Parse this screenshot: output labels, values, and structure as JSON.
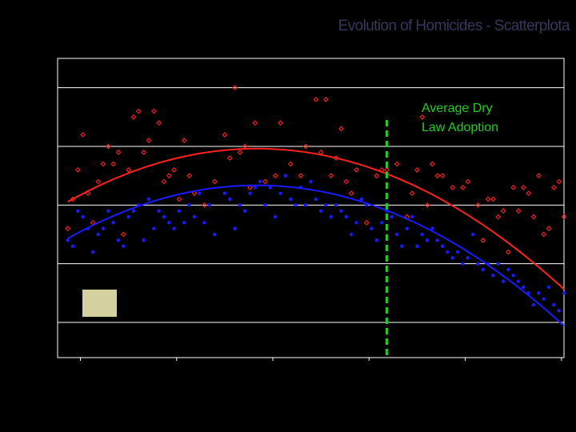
{
  "chart_data": {
    "type": "scatter",
    "title": "Evolution of Homicides - Scatterplota",
    "xlim": [
      0,
      100
    ],
    "ylim": [
      -0.6,
      4.5
    ],
    "grid_y": [
      0,
      1,
      2,
      3,
      4
    ],
    "grid": true,
    "x_ticks": [
      4.5,
      23.5,
      42.5,
      61.5,
      80.5,
      99.5
    ],
    "annotation": {
      "text_line1": "Average Dry",
      "text_line2": "Law Adoption",
      "x": 65
    },
    "legend_swatch_color": "#d4d0a0",
    "colors": {
      "background": "#000000",
      "title": "#35385a",
      "grid": "#ffffff",
      "series_a": "#ff2020",
      "series_b": "#1a1aff",
      "annotation": "#22cc22"
    },
    "series": [
      {
        "key": "red",
        "fit": [
          -0.000651,
          0.0512,
          1.955
        ],
        "points": [
          [
            2,
            1.6
          ],
          [
            3,
            2.1
          ],
          [
            4,
            2.6
          ],
          [
            5,
            3.2
          ],
          [
            6,
            2.2
          ],
          [
            7,
            1.7
          ],
          [
            8,
            2.4
          ],
          [
            9,
            2.7
          ],
          [
            10,
            3
          ],
          [
            11,
            2.7
          ],
          [
            12,
            2.9
          ],
          [
            13,
            1.5
          ],
          [
            14,
            2.6
          ],
          [
            15,
            3.5
          ],
          [
            16,
            3.6
          ],
          [
            17,
            2.9
          ],
          [
            18,
            3.1
          ],
          [
            19,
            3.6
          ],
          [
            20,
            3.4
          ],
          [
            21,
            2.4
          ],
          [
            22,
            2.5
          ],
          [
            23,
            2.6
          ],
          [
            24,
            2.1
          ],
          [
            25,
            3.1
          ],
          [
            26,
            2.5
          ],
          [
            27,
            2.2
          ],
          [
            29,
            2
          ],
          [
            31,
            2.4
          ],
          [
            33,
            3.2
          ],
          [
            34,
            2.8
          ],
          [
            35,
            4
          ],
          [
            36,
            2.9
          ],
          [
            37,
            3
          ],
          [
            38,
            2.3
          ],
          [
            39,
            3.4
          ],
          [
            41,
            2.4
          ],
          [
            43,
            2.5
          ],
          [
            44,
            3.4
          ],
          [
            46,
            2.7
          ],
          [
            48,
            2.5
          ],
          [
            49,
            3
          ],
          [
            51,
            3.8
          ],
          [
            52,
            2.9
          ],
          [
            53,
            3.8
          ],
          [
            54,
            2.5
          ],
          [
            55,
            2.8
          ],
          [
            56,
            3.3
          ],
          [
            57,
            2.4
          ],
          [
            58,
            2.2
          ],
          [
            59,
            2.6
          ],
          [
            61,
            1.7
          ],
          [
            63,
            2.5
          ],
          [
            64,
            2.6
          ],
          [
            65,
            2.6
          ],
          [
            67,
            2.7
          ],
          [
            69,
            1.8
          ],
          [
            70,
            2.2
          ],
          [
            71,
            2.6
          ],
          [
            72,
            3.5
          ],
          [
            73,
            2
          ],
          [
            74,
            2.7
          ],
          [
            75,
            2.5
          ],
          [
            76,
            2.5
          ],
          [
            78,
            2.3
          ],
          [
            80,
            2.3
          ],
          [
            81,
            2.4
          ],
          [
            83,
            2
          ],
          [
            84,
            1.4
          ],
          [
            85,
            2.1
          ],
          [
            86,
            2.1
          ],
          [
            87,
            1.8
          ],
          [
            88,
            1.9
          ],
          [
            89,
            1.2
          ],
          [
            90,
            2.3
          ],
          [
            91,
            1.9
          ],
          [
            92,
            2.3
          ],
          [
            93,
            2.2
          ],
          [
            94,
            1.8
          ],
          [
            95,
            2.5
          ],
          [
            96,
            1.5
          ],
          [
            97,
            1.6
          ],
          [
            98,
            2.3
          ],
          [
            99,
            2.4
          ],
          [
            100,
            1.8
          ]
        ]
      },
      {
        "key": "blue",
        "fit": [
          -0.000651,
          0.0512,
          1.33
        ],
        "points": [
          [
            2,
            1.4
          ],
          [
            3,
            1.3
          ],
          [
            4,
            1.9
          ],
          [
            5,
            1.8
          ],
          [
            6,
            1.6
          ],
          [
            7,
            1.2
          ],
          [
            8,
            1.5
          ],
          [
            9,
            1.6
          ],
          [
            10,
            1.9
          ],
          [
            11,
            1.7
          ],
          [
            12,
            1.4
          ],
          [
            13,
            1.3
          ],
          [
            14,
            1.8
          ],
          [
            15,
            1.9
          ],
          [
            16,
            2
          ],
          [
            17,
            1.4
          ],
          [
            18,
            2.1
          ],
          [
            19,
            1.6
          ],
          [
            20,
            1.9
          ],
          [
            21,
            1.8
          ],
          [
            22,
            1.7
          ],
          [
            23,
            1.6
          ],
          [
            24,
            1.9
          ],
          [
            25,
            1.7
          ],
          [
            26,
            2
          ],
          [
            27,
            1.8
          ],
          [
            28,
            2.2
          ],
          [
            29,
            1.7
          ],
          [
            30,
            2
          ],
          [
            31,
            1.5
          ],
          [
            33,
            2.2
          ],
          [
            34,
            2.1
          ],
          [
            35,
            1.6
          ],
          [
            36,
            2
          ],
          [
            37,
            1.9
          ],
          [
            38,
            2.2
          ],
          [
            39,
            2.3
          ],
          [
            40,
            2.4
          ],
          [
            41,
            2
          ],
          [
            42,
            2.3
          ],
          [
            43,
            1.8
          ],
          [
            44,
            2.2
          ],
          [
            45,
            2.5
          ],
          [
            46,
            2.1
          ],
          [
            47,
            2
          ],
          [
            48,
            2.3
          ],
          [
            49,
            2
          ],
          [
            50,
            2.4
          ],
          [
            51,
            2.1
          ],
          [
            52,
            1.9
          ],
          [
            53,
            2
          ],
          [
            54,
            1.8
          ],
          [
            55,
            2
          ],
          [
            56,
            1.9
          ],
          [
            57,
            1.8
          ],
          [
            58,
            1.5
          ],
          [
            59,
            1.7
          ],
          [
            60,
            2.1
          ],
          [
            61,
            2
          ],
          [
            62,
            1.6
          ],
          [
            63,
            1.4
          ],
          [
            64,
            1.7
          ],
          [
            65,
            1.9
          ],
          [
            66,
            1.8
          ],
          [
            67,
            1.5
          ],
          [
            68,
            1.3
          ],
          [
            69,
            1.6
          ],
          [
            70,
            1.8
          ],
          [
            71,
            1.3
          ],
          [
            72,
            1.5
          ],
          [
            73,
            1.4
          ],
          [
            74,
            1.6
          ],
          [
            75,
            1.4
          ],
          [
            76,
            1.3
          ],
          [
            77,
            1.2
          ],
          [
            78,
            1.1
          ],
          [
            79,
            1.2
          ],
          [
            80,
            1
          ],
          [
            81,
            1.1
          ],
          [
            82,
            1.5
          ],
          [
            83,
            1
          ],
          [
            84,
            0.9
          ],
          [
            85,
            1
          ],
          [
            86,
            0.8
          ],
          [
            87,
            1
          ],
          [
            88,
            0.7
          ],
          [
            89,
            0.9
          ],
          [
            90,
            0.8
          ],
          [
            91,
            0.7
          ],
          [
            92,
            0.6
          ],
          [
            93,
            0.5
          ],
          [
            94,
            0.3
          ],
          [
            95,
            0.5
          ],
          [
            96,
            0.4
          ],
          [
            97,
            0.6
          ],
          [
            98,
            0.3
          ],
          [
            99,
            0.2
          ],
          [
            100,
            0.5
          ]
        ]
      }
    ]
  }
}
